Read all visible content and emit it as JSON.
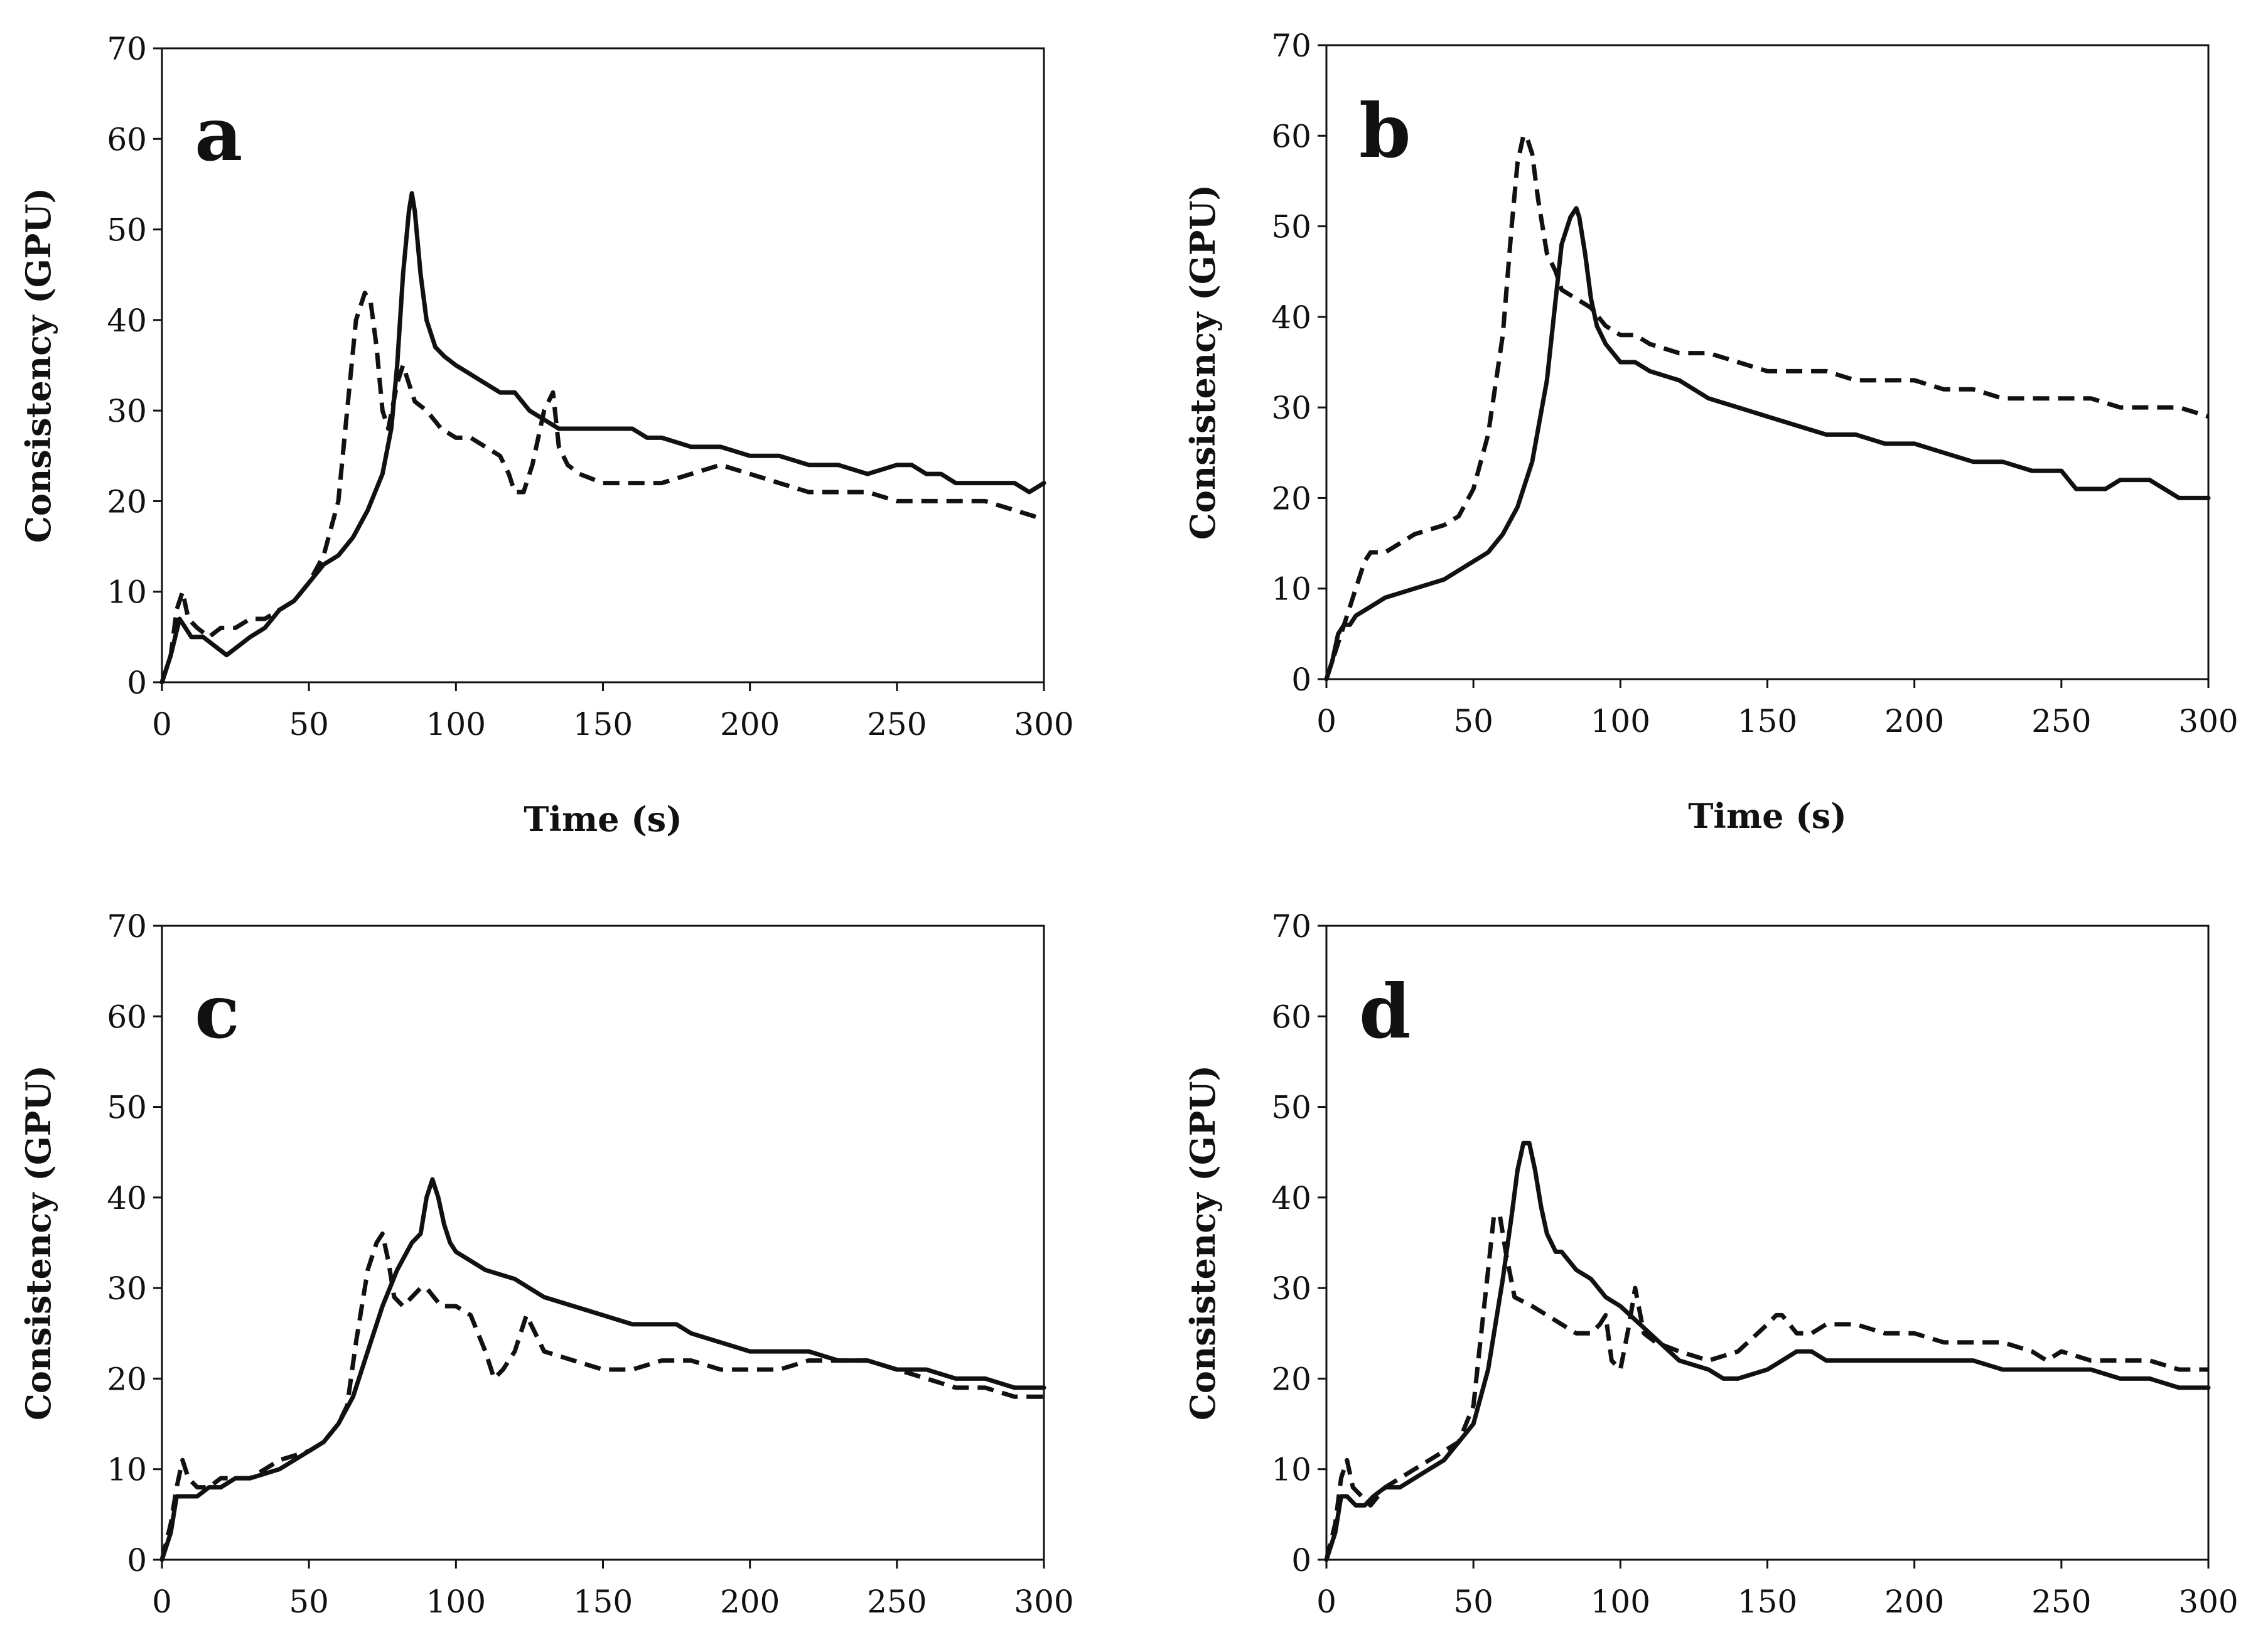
{
  "chart_data": [
    {
      "type": "line",
      "panel_label": "a",
      "xlabel": "Time (s)",
      "ylabel": "Consistency (GPU)",
      "xlim": [
        0,
        300
      ],
      "ylim": [
        0,
        70
      ],
      "xticks": [
        "0",
        "50",
        "100",
        "150",
        "200",
        "250",
        "300"
      ],
      "yticks": [
        "0",
        "10",
        "20",
        "30",
        "40",
        "50",
        "60",
        "70"
      ],
      "series": [
        {
          "name": "solid",
          "style": "solid",
          "x": [
            0,
            3,
            6,
            8,
            10,
            14,
            18,
            22,
            26,
            30,
            35,
            40,
            45,
            50,
            55,
            60,
            65,
            70,
            75,
            78,
            80,
            82,
            84,
            85,
            86,
            88,
            90,
            93,
            96,
            100,
            105,
            110,
            115,
            120,
            125,
            130,
            135,
            140,
            150,
            160,
            165,
            170,
            180,
            190,
            200,
            210,
            220,
            230,
            240,
            250,
            255,
            260,
            265,
            270,
            280,
            290,
            295,
            300
          ],
          "y": [
            0,
            3,
            7,
            6,
            5,
            5,
            4,
            3,
            4,
            5,
            6,
            8,
            9,
            11,
            13,
            14,
            16,
            19,
            23,
            28,
            35,
            45,
            52,
            54,
            52,
            45,
            40,
            37,
            36,
            35,
            34,
            33,
            32,
            32,
            30,
            29,
            28,
            28,
            28,
            28,
            27,
            27,
            26,
            26,
            25,
            25,
            24,
            24,
            23,
            24,
            24,
            23,
            23,
            22,
            22,
            22,
            21,
            22
          ]
        },
        {
          "name": "dashed",
          "style": "dashed",
          "x": [
            0,
            3,
            5,
            7,
            9,
            12,
            16,
            20,
            25,
            30,
            35,
            40,
            45,
            50,
            55,
            60,
            63,
            66,
            69,
            71,
            73,
            75,
            77,
            80,
            82,
            84,
            86,
            90,
            95,
            100,
            105,
            110,
            115,
            118,
            120,
            123,
            126,
            130,
            133,
            135,
            138,
            142,
            150,
            160,
            170,
            180,
            190,
            200,
            210,
            220,
            230,
            240,
            250,
            260,
            270,
            280,
            290,
            300
          ],
          "y": [
            0,
            3,
            8,
            10,
            7,
            6,
            5,
            6,
            6,
            7,
            7,
            8,
            9,
            11,
            14,
            20,
            30,
            40,
            43,
            42,
            37,
            30,
            28,
            33,
            35,
            33,
            31,
            30,
            28,
            27,
            27,
            26,
            25,
            23,
            21,
            21,
            24,
            30,
            32,
            26,
            24,
            23,
            22,
            22,
            22,
            23,
            24,
            23,
            22,
            21,
            21,
            21,
            20,
            20,
            20,
            20,
            19,
            18
          ]
        }
      ]
    },
    {
      "type": "line",
      "panel_label": "b",
      "xlabel": "Time (s)",
      "ylabel": "Consistency (GPU)",
      "xlim": [
        0,
        300
      ],
      "ylim": [
        0,
        70
      ],
      "xticks": [
        "0",
        "50",
        "100",
        "150",
        "200",
        "250",
        "300"
      ],
      "yticks": [
        "0",
        "10",
        "20",
        "30",
        "40",
        "50",
        "60",
        "70"
      ],
      "series": [
        {
          "name": "solid",
          "style": "solid",
          "x": [
            0,
            2,
            4,
            6,
            8,
            10,
            15,
            20,
            30,
            40,
            50,
            55,
            60,
            65,
            70,
            75,
            78,
            80,
            83,
            85,
            86,
            88,
            90,
            92,
            95,
            100,
            105,
            110,
            120,
            130,
            140,
            150,
            160,
            170,
            180,
            190,
            200,
            210,
            220,
            230,
            240,
            250,
            255,
            260,
            265,
            270,
            275,
            280,
            285,
            290,
            295,
            300
          ],
          "y": [
            0,
            2,
            5,
            6,
            6,
            7,
            8,
            9,
            10,
            11,
            13,
            14,
            16,
            19,
            24,
            33,
            42,
            48,
            51,
            52,
            51,
            47,
            42,
            39,
            37,
            35,
            35,
            34,
            33,
            31,
            30,
            29,
            28,
            27,
            27,
            26,
            26,
            25,
            24,
            24,
            23,
            23,
            21,
            21,
            21,
            22,
            22,
            22,
            21,
            20,
            20,
            20
          ]
        },
        {
          "name": "dashed",
          "style": "dashed",
          "x": [
            0,
            3,
            6,
            8,
            10,
            13,
            15,
            20,
            25,
            30,
            40,
            45,
            50,
            55,
            60,
            63,
            65,
            67,
            68,
            70,
            72,
            75,
            78,
            80,
            85,
            90,
            95,
            100,
            105,
            110,
            120,
            130,
            140,
            150,
            160,
            170,
            180,
            190,
            200,
            210,
            220,
            230,
            240,
            250,
            260,
            270,
            280,
            290,
            300
          ],
          "y": [
            0,
            3,
            6,
            8,
            10,
            13,
            14,
            14,
            15,
            16,
            17,
            18,
            21,
            27,
            38,
            50,
            57,
            60,
            60,
            58,
            53,
            47,
            45,
            43,
            42,
            41,
            39,
            38,
            38,
            37,
            36,
            36,
            35,
            34,
            34,
            34,
            33,
            33,
            33,
            32,
            32,
            31,
            31,
            31,
            31,
            30,
            30,
            30,
            29
          ]
        }
      ]
    },
    {
      "type": "line",
      "panel_label": "c",
      "xlabel": "",
      "ylabel": "Consistency (GPU)",
      "xlim": [
        0,
        300
      ],
      "ylim": [
        0,
        70
      ],
      "xticks": [
        "0",
        "50",
        "100",
        "150",
        "200",
        "250",
        "300"
      ],
      "yticks": [
        "0",
        "10",
        "20",
        "30",
        "40",
        "50",
        "60",
        "70"
      ],
      "series": [
        {
          "name": "solid",
          "style": "solid",
          "x": [
            0,
            3,
            5,
            8,
            12,
            16,
            20,
            25,
            30,
            40,
            50,
            55,
            60,
            65,
            70,
            75,
            80,
            85,
            88,
            90,
            92,
            94,
            96,
            98,
            100,
            110,
            120,
            130,
            140,
            150,
            160,
            170,
            175,
            180,
            190,
            200,
            210,
            220,
            230,
            240,
            250,
            260,
            270,
            280,
            290,
            300
          ],
          "y": [
            0,
            3,
            7,
            7,
            7,
            8,
            8,
            9,
            9,
            10,
            12,
            13,
            15,
            18,
            23,
            28,
            32,
            35,
            36,
            40,
            42,
            40,
            37,
            35,
            34,
            32,
            31,
            29,
            28,
            27,
            26,
            26,
            26,
            25,
            24,
            23,
            23,
            23,
            22,
            22,
            21,
            21,
            20,
            20,
            19,
            19
          ]
        },
        {
          "name": "dashed",
          "style": "dashed",
          "x": [
            0,
            3,
            5,
            7,
            9,
            12,
            16,
            20,
            25,
            30,
            40,
            50,
            55,
            60,
            63,
            66,
            70,
            73,
            75,
            77,
            79,
            82,
            85,
            88,
            90,
            95,
            100,
            105,
            110,
            113,
            116,
            120,
            124,
            127,
            130,
            140,
            150,
            160,
            170,
            180,
            190,
            200,
            210,
            220,
            230,
            240,
            250,
            260,
            270,
            280,
            290,
            300
          ],
          "y": [
            0,
            4,
            8,
            11,
            9,
            8,
            8,
            9,
            9,
            9,
            11,
            12,
            13,
            15,
            17,
            24,
            32,
            35,
            36,
            33,
            29,
            28,
            29,
            30,
            30,
            28,
            28,
            27,
            23,
            20,
            21,
            23,
            27,
            25,
            23,
            22,
            21,
            21,
            22,
            22,
            21,
            21,
            21,
            22,
            22,
            22,
            21,
            20,
            19,
            19,
            18,
            18
          ]
        }
      ]
    },
    {
      "type": "line",
      "panel_label": "d",
      "xlabel": "",
      "ylabel": "Consistency (GPU)",
      "xlim": [
        0,
        300
      ],
      "ylim": [
        0,
        70
      ],
      "xticks": [
        "0",
        "50",
        "100",
        "150",
        "200",
        "250",
        "300"
      ],
      "yticks": [
        "0",
        "10",
        "20",
        "30",
        "40",
        "50",
        "60",
        "70"
      ],
      "series": [
        {
          "name": "solid",
          "style": "solid",
          "x": [
            0,
            3,
            5,
            7,
            10,
            13,
            16,
            20,
            25,
            30,
            35,
            40,
            45,
            50,
            55,
            60,
            63,
            65,
            67,
            69,
            71,
            73,
            75,
            78,
            80,
            85,
            90,
            95,
            100,
            110,
            120,
            130,
            135,
            140,
            150,
            155,
            160,
            165,
            170,
            180,
            190,
            200,
            210,
            220,
            230,
            240,
            250,
            260,
            270,
            280,
            290,
            300
          ],
          "y": [
            0,
            3,
            7,
            7,
            6,
            6,
            7,
            8,
            8,
            9,
            10,
            11,
            13,
            15,
            21,
            31,
            38,
            43,
            46,
            46,
            43,
            39,
            36,
            34,
            34,
            32,
            31,
            29,
            28,
            25,
            22,
            21,
            20,
            20,
            21,
            22,
            23,
            23,
            22,
            22,
            22,
            22,
            22,
            22,
            21,
            21,
            21,
            21,
            20,
            20,
            19,
            19
          ]
        },
        {
          "name": "dashed",
          "style": "dashed",
          "x": [
            0,
            3,
            5,
            7,
            9,
            12,
            15,
            20,
            25,
            30,
            35,
            40,
            45,
            50,
            52,
            55,
            57,
            59,
            61,
            64,
            70,
            75,
            80,
            85,
            90,
            93,
            95,
            97,
            100,
            103,
            105,
            108,
            112,
            120,
            130,
            140,
            150,
            153,
            155,
            160,
            165,
            170,
            175,
            180,
            190,
            200,
            210,
            220,
            230,
            240,
            245,
            250,
            260,
            270,
            280,
            290,
            300
          ],
          "y": [
            0,
            4,
            9,
            11,
            8,
            7,
            6,
            8,
            9,
            10,
            11,
            12,
            13,
            17,
            23,
            32,
            38,
            38,
            34,
            29,
            28,
            27,
            26,
            25,
            25,
            26,
            27,
            22,
            21,
            26,
            30,
            25,
            24,
            23,
            22,
            23,
            26,
            27,
            27,
            25,
            25,
            26,
            26,
            26,
            25,
            25,
            24,
            24,
            24,
            23,
            22,
            23,
            22,
            22,
            22,
            21,
            21
          ]
        }
      ]
    }
  ]
}
